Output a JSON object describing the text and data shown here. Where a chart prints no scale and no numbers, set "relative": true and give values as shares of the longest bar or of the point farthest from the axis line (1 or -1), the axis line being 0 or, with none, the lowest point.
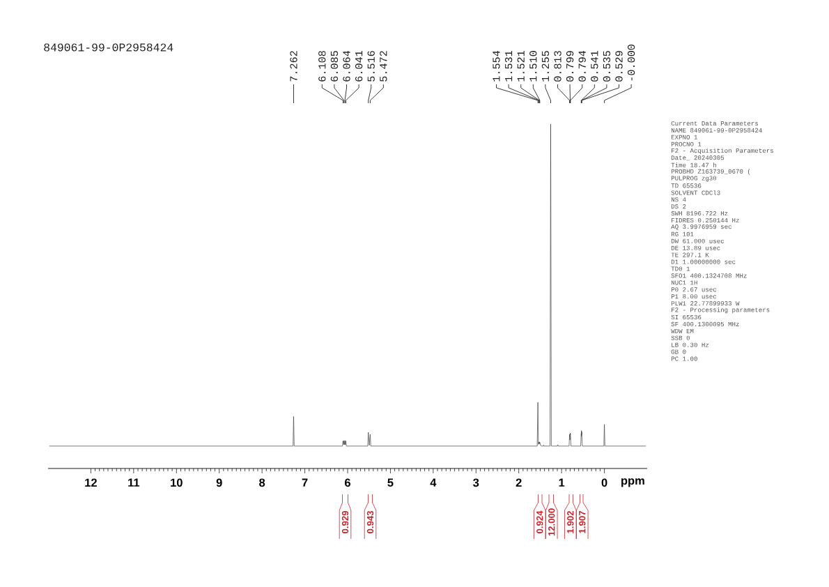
{
  "chart_data": [
    {
      "type": "line",
      "title": "849061-99-0P2958424",
      "xlabel": "ppm",
      "relative": true,
      "xlim": [
        13,
        -1
      ],
      "xticks": [
        12,
        11,
        10,
        9,
        8,
        7,
        6,
        5,
        4,
        3,
        2,
        1,
        0
      ],
      "series": [
        {
          "color": "#404040",
          "x": [
            12.97,
            7.275,
            7.262,
            7.249,
            6.12,
            6.108,
            6.096,
            6.085,
            6.074,
            6.064,
            6.052,
            6.041,
            6.03,
            5.53,
            5.516,
            5.494,
            5.472,
            5.458,
            1.57,
            1.554,
            1.542,
            1.531,
            1.526,
            1.521,
            1.515,
            1.51,
            1.49,
            1.47,
            1.43,
            1.42,
            1.41,
            1.27,
            1.255,
            1.24,
            1.1,
            1.09,
            1.08,
            0.825,
            0.813,
            0.805,
            0.799,
            0.796,
            0.794,
            0.782,
            0.555,
            0.541,
            0.537,
            0.535,
            0.532,
            0.529,
            0.517,
            0.012,
            0,
            -0.012,
            -0.97
          ],
          "values": [
            0.065,
            0.065,
            0.151,
            0.065,
            0.065,
            0.08,
            0.069,
            0.081,
            0.069,
            0.081,
            0.069,
            0.08,
            0.065,
            0.065,
            0.105,
            0.067,
            0.099,
            0.065,
            0.065,
            0.192,
            0.07,
            0.077,
            0.072,
            0.077,
            0.072,
            0.076,
            0.067,
            0.065,
            0.065,
            0.068,
            0.065,
            0.065,
            1,
            0.065,
            0.065,
            0.069,
            0.065,
            0.065,
            0.099,
            0.083,
            0.103,
            0.098,
            0.101,
            0.065,
            0.065,
            0.102,
            0.093,
            0.11,
            0.098,
            0.106,
            0.065,
            0.065,
            0.128,
            0.065,
            0.065
          ]
        }
      ],
      "annotations": [
        {
          "text": "7.262",
          "x": 7.262
        },
        {
          "text": "6.108",
          "x": 6.108
        },
        {
          "text": "6.085",
          "x": 6.085
        },
        {
          "text": "6.064",
          "x": 6.064
        },
        {
          "text": "6.041",
          "x": 6.041
        },
        {
          "text": "5.516",
          "x": 5.516
        },
        {
          "text": "5.472",
          "x": 5.472
        },
        {
          "text": "1.554",
          "x": 1.554
        },
        {
          "text": "1.531",
          "x": 1.531
        },
        {
          "text": "1.521",
          "x": 1.521
        },
        {
          "text": "1.510",
          "x": 1.51
        },
        {
          "text": "1.255",
          "x": 1.255
        },
        {
          "text": "0.813",
          "x": 0.813
        },
        {
          "text": "0.799",
          "x": 0.799
        },
        {
          "text": "0.794",
          "x": 0.794
        },
        {
          "text": "0.541",
          "x": 0.541
        },
        {
          "text": "0.535",
          "x": 0.535
        },
        {
          "text": "0.529",
          "x": 0.529
        },
        {
          "text": "-0.000",
          "x": 0
        },
        "0.929",
        "0.943",
        "0.924",
        "12.000",
        "1.902",
        "1.907"
      ]
    },
    {
      "type": "other",
      "annotations": [
        "Current Data Parameters",
        "NAME 849061-99-0P2958424",
        "EXPNO 1",
        "PROCNO 1",
        "F2 - Acquisition Parameters",
        "Date_ 20240305",
        "Time 18.47 h",
        "PROBHD Z163739_0670 (",
        "PULPROG zg30",
        "TD 65536",
        "SOLVENT CDCl3",
        "NS 4",
        "DS 2",
        "SWH 8196.722 Hz",
        "FIDRES 0.250144 Hz",
        "AQ 3.9976959 sec",
        "RG 101",
        "DW 61.000 usec",
        "DE 13.89 usec",
        "TE 297.1 K",
        "D1 1.00000000 sec",
        "TD0 1",
        "SFO1 400.1324708 MHz",
        "NUC1 1H",
        "P0 2.67 usec",
        "P1 8.00 usec",
        "PLW1 22.77899933 W",
        "F2 - Processing parameters",
        "SI 65536",
        "SF 400.1300095 MHz",
        "WDW EM",
        "SSB 0",
        "LB 0.30 Hz",
        "GB 0",
        "PC 1.00"
      ]
    }
  ]
}
